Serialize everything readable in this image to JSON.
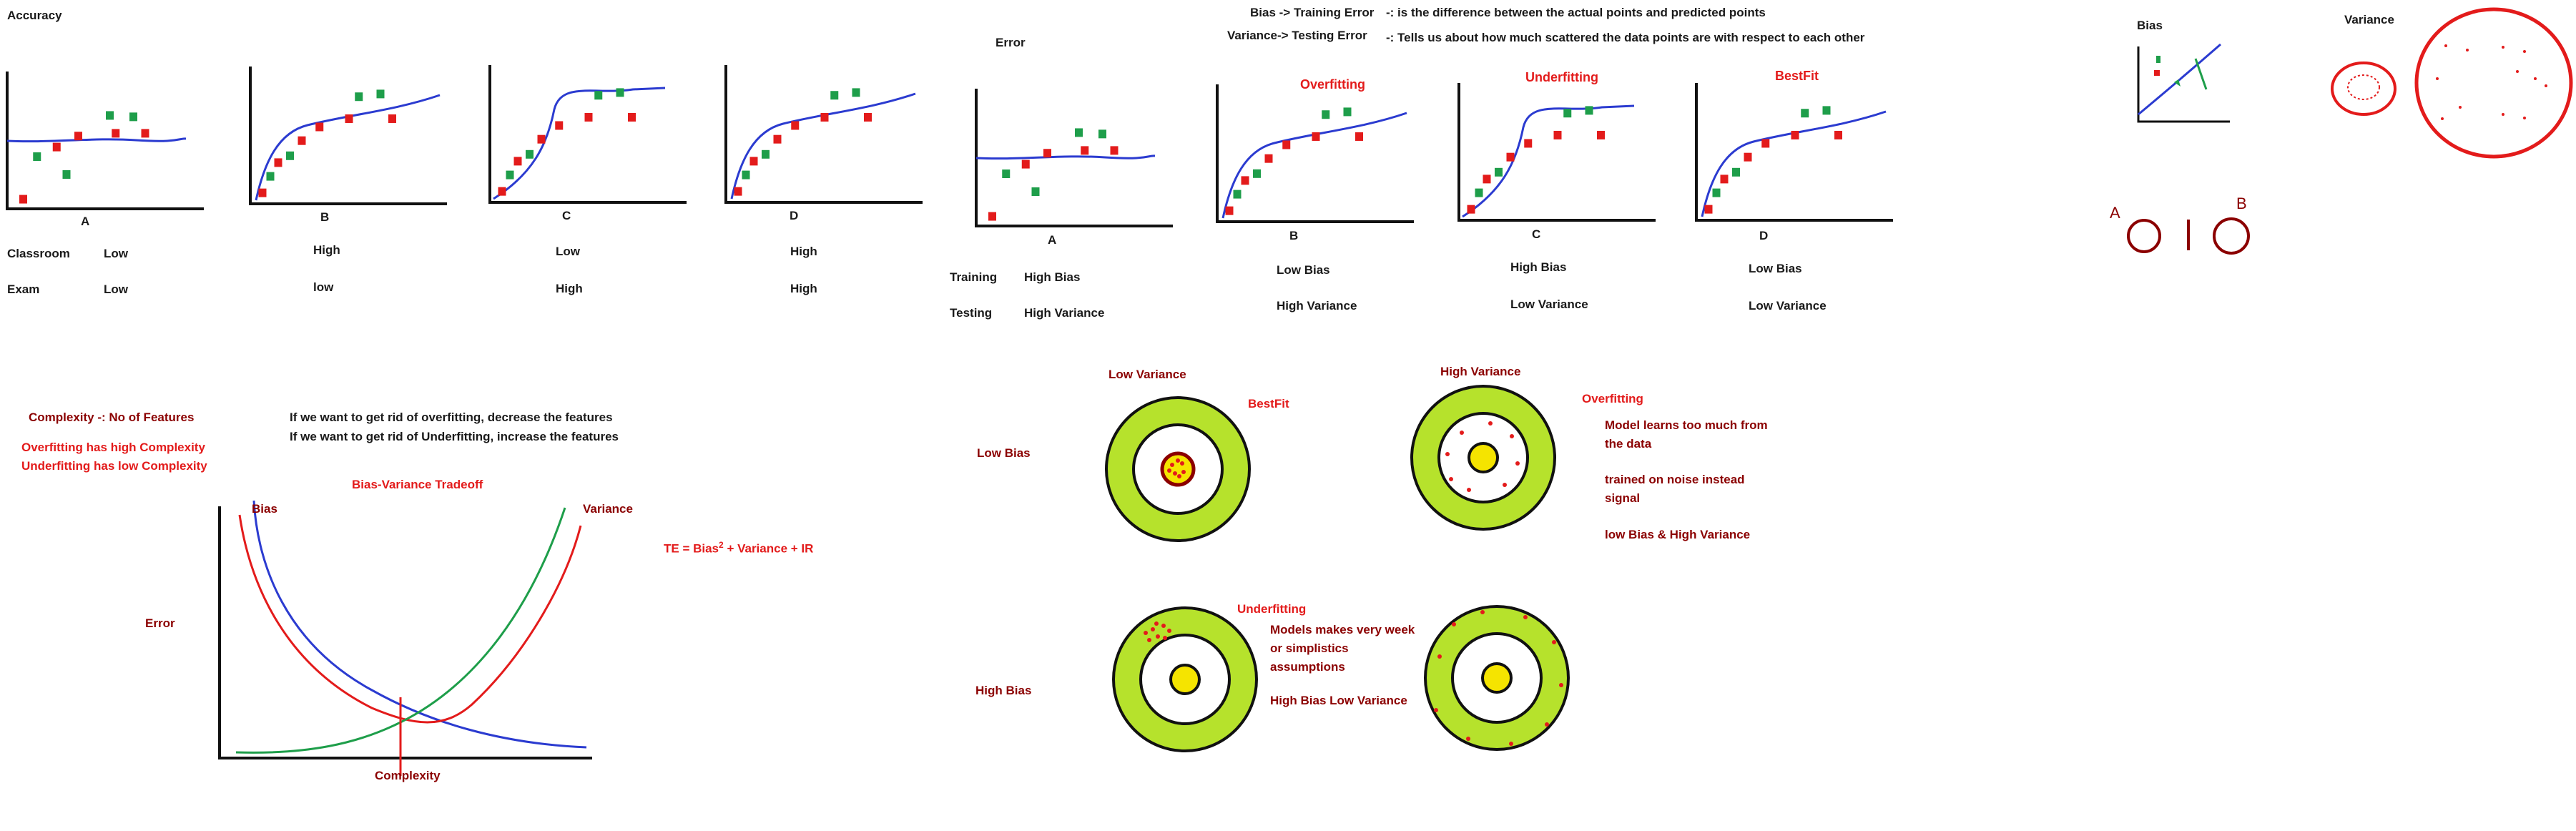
{
  "colors": {
    "axis": "#111111",
    "blue": "#2b3bd0",
    "red": "#e31b1b",
    "green": "#1e9e4a",
    "darkred": "#8b0000",
    "lime": "#b6e22c",
    "yellow": "#f5e400",
    "white": "#ffffff"
  },
  "accuracy": {
    "title": "Accuracy",
    "graph_labels": [
      "A",
      "B",
      "C",
      "D"
    ],
    "row1_label": "Classroom",
    "row2_label": "Exam",
    "row1": [
      "Low",
      "High",
      "Low",
      "High"
    ],
    "row2": [
      "Low",
      "low",
      "High",
      "High"
    ]
  },
  "error": {
    "title": "Error",
    "graph_labels": [
      "A",
      "B",
      "C",
      "D"
    ],
    "headings": [
      "Overfitting",
      "Underfitting",
      "BestFit"
    ],
    "row1_label": "Training",
    "row2_label": "Testing",
    "row1": [
      "High Bias",
      "Low Bias",
      "High Bias",
      "Low Bias"
    ],
    "row2": [
      "High Variance",
      "High Variance",
      "Low Variance",
      "Low Variance"
    ]
  },
  "definitions": {
    "bias_term": "Bias -> Training Error",
    "bias_def": "-: is the difference between the actual points and predicted points",
    "variance_term": "Variance-> Testing Error",
    "variance_def": "-: Tells us about how much scattered the data points are with respect to each other"
  },
  "top_right": {
    "bias_title": "Bias",
    "variance_title": "Variance",
    "markA": "A",
    "markB": "B"
  },
  "complexity": {
    "title": "Complexity -: No of Features",
    "line1": "Overfitting has high Complexity",
    "line2": "Underfitting has low Complexity",
    "advice1": "If we want to get rid of overfitting,  decrease the features",
    "advice2": "If we want to get rid of Underfitting, increase the features"
  },
  "tradeoff": {
    "title": "Bias-Variance Tradeoff",
    "bias_label": "Bias",
    "variance_label": "Variance",
    "error_label": "Error",
    "complexity_label": "Complexity",
    "formula_pre": "TE = Bias",
    "formula_sup": "2",
    "formula_post": "+ Variance + IR"
  },
  "targets": {
    "low_variance": "Low Variance",
    "high_variance": "High Variance",
    "low_bias": "Low Bias",
    "high_bias": "High Bias",
    "bestfit": "BestFit",
    "overfitting": "Overfitting",
    "over_desc1": "Model learns too much from the data",
    "over_desc2": "trained on noise instead signal",
    "over_desc3": "low Bias & High Variance",
    "underfitting": "Underfitting",
    "under_desc1": "Models makes very week or simplistics assumptions",
    "under_desc2": "High Bias Low Variance"
  }
}
